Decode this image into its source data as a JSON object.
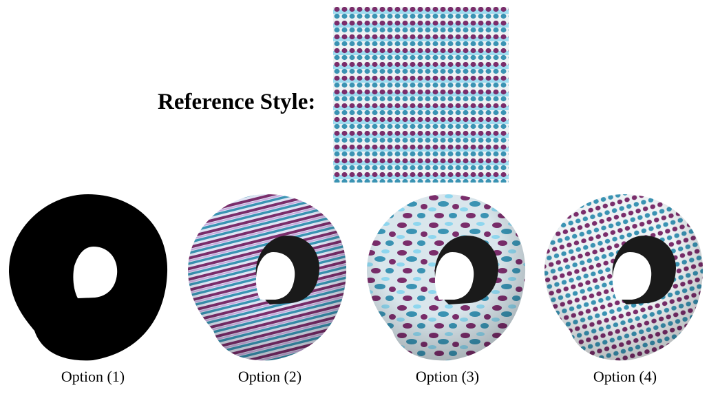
{
  "reference": {
    "label": "Reference Style:",
    "texture_colors": {
      "base": "#eef2f4",
      "light_blue": "#8ed6ee",
      "teal": "#3a93b3",
      "purple": "#7a2d6b"
    }
  },
  "options": [
    {
      "label": "Option (1)",
      "render": "black-silhouette"
    },
    {
      "label": "Option (2)",
      "render": "stretched-stripes"
    },
    {
      "label": "Option (3)",
      "render": "scrambled-blotches"
    },
    {
      "label": "Option (4)",
      "render": "dotted-rows"
    }
  ]
}
